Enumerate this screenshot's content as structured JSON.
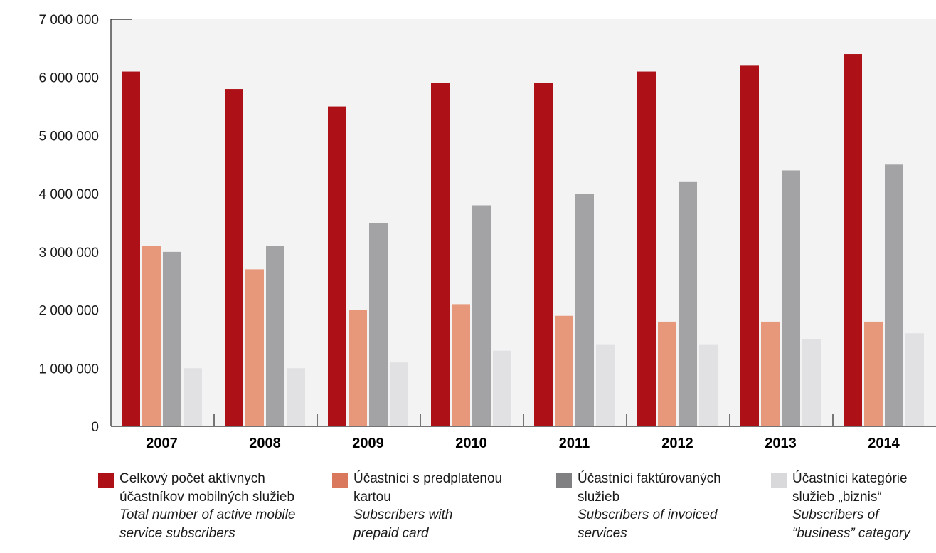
{
  "chart_data": {
    "type": "bar",
    "categories": [
      "2007",
      "2008",
      "2009",
      "2010",
      "2011",
      "2012",
      "2013",
      "2014"
    ],
    "series": [
      {
        "name": "Celkový počet aktívnych účastníkov mobilných služieb / Total number of active mobile service subscribers",
        "color": "#ad1117",
        "values": [
          6100000,
          5800000,
          5500000,
          5900000,
          5900000,
          6100000,
          6200000,
          6400000
        ]
      },
      {
        "name": "Účastníci s predplatenou kartou / Subscribers with prepaid card",
        "color": "#e8987a",
        "values": [
          3100000,
          2700000,
          2000000,
          2100000,
          1900000,
          1800000,
          1800000,
          1800000
        ]
      },
      {
        "name": "Účastníci faktúrovaných služieb / Subscribers of invoiced services",
        "color": "#a3a3a6",
        "values": [
          3000000,
          3100000,
          3500000,
          3800000,
          4000000,
          4200000,
          4400000,
          4500000
        ]
      },
      {
        "name": "Účastníci kategórie služieb „biznis“ / Subscribers of “business” category",
        "color": "#e1e1e3",
        "values": [
          1000000,
          1000000,
          1100000,
          1300000,
          1400000,
          1400000,
          1500000,
          1600000
        ]
      }
    ],
    "ylim": [
      0,
      7000000
    ],
    "yticks": [
      0,
      1000000,
      2000000,
      3000000,
      4000000,
      5000000,
      6000000,
      7000000
    ],
    "ytick_labels": [
      "0",
      "1 000 000",
      "2 000 000",
      "3 000 000",
      "4 000 000",
      "5 000 000",
      "6 000 000",
      "7 000 000"
    ],
    "title": "",
    "xlabel": "",
    "ylabel": "",
    "grid": false,
    "legend_position": "bottom",
    "plot_background": "#f3f3f4"
  },
  "legend": [
    {
      "swatch_color": "#ad1117",
      "sk_line1": "Celkový počet aktívnych",
      "sk_line2": "účastníkov mobilných služieb",
      "en_line1": "Total number of active mobile",
      "en_line2": "service subscribers"
    },
    {
      "swatch_color": "#d9785c",
      "sk_line1": "Účastníci s predplatenou",
      "sk_line2": "kartou",
      "en_line1": "Subscribers with",
      "en_line2": "prepaid card"
    },
    {
      "swatch_color": "#808083",
      "sk_line1": "Účastníci faktúrovaných",
      "sk_line2": "služieb",
      "en_line1": "Subscribers of invoiced",
      "en_line2": "services"
    },
    {
      "swatch_color": "#d9d9db",
      "sk_line1": "Účastníci kategórie",
      "sk_line2": "služieb „biznis“",
      "en_line1": "Subscribers of",
      "en_line2": "“business” category"
    }
  ]
}
